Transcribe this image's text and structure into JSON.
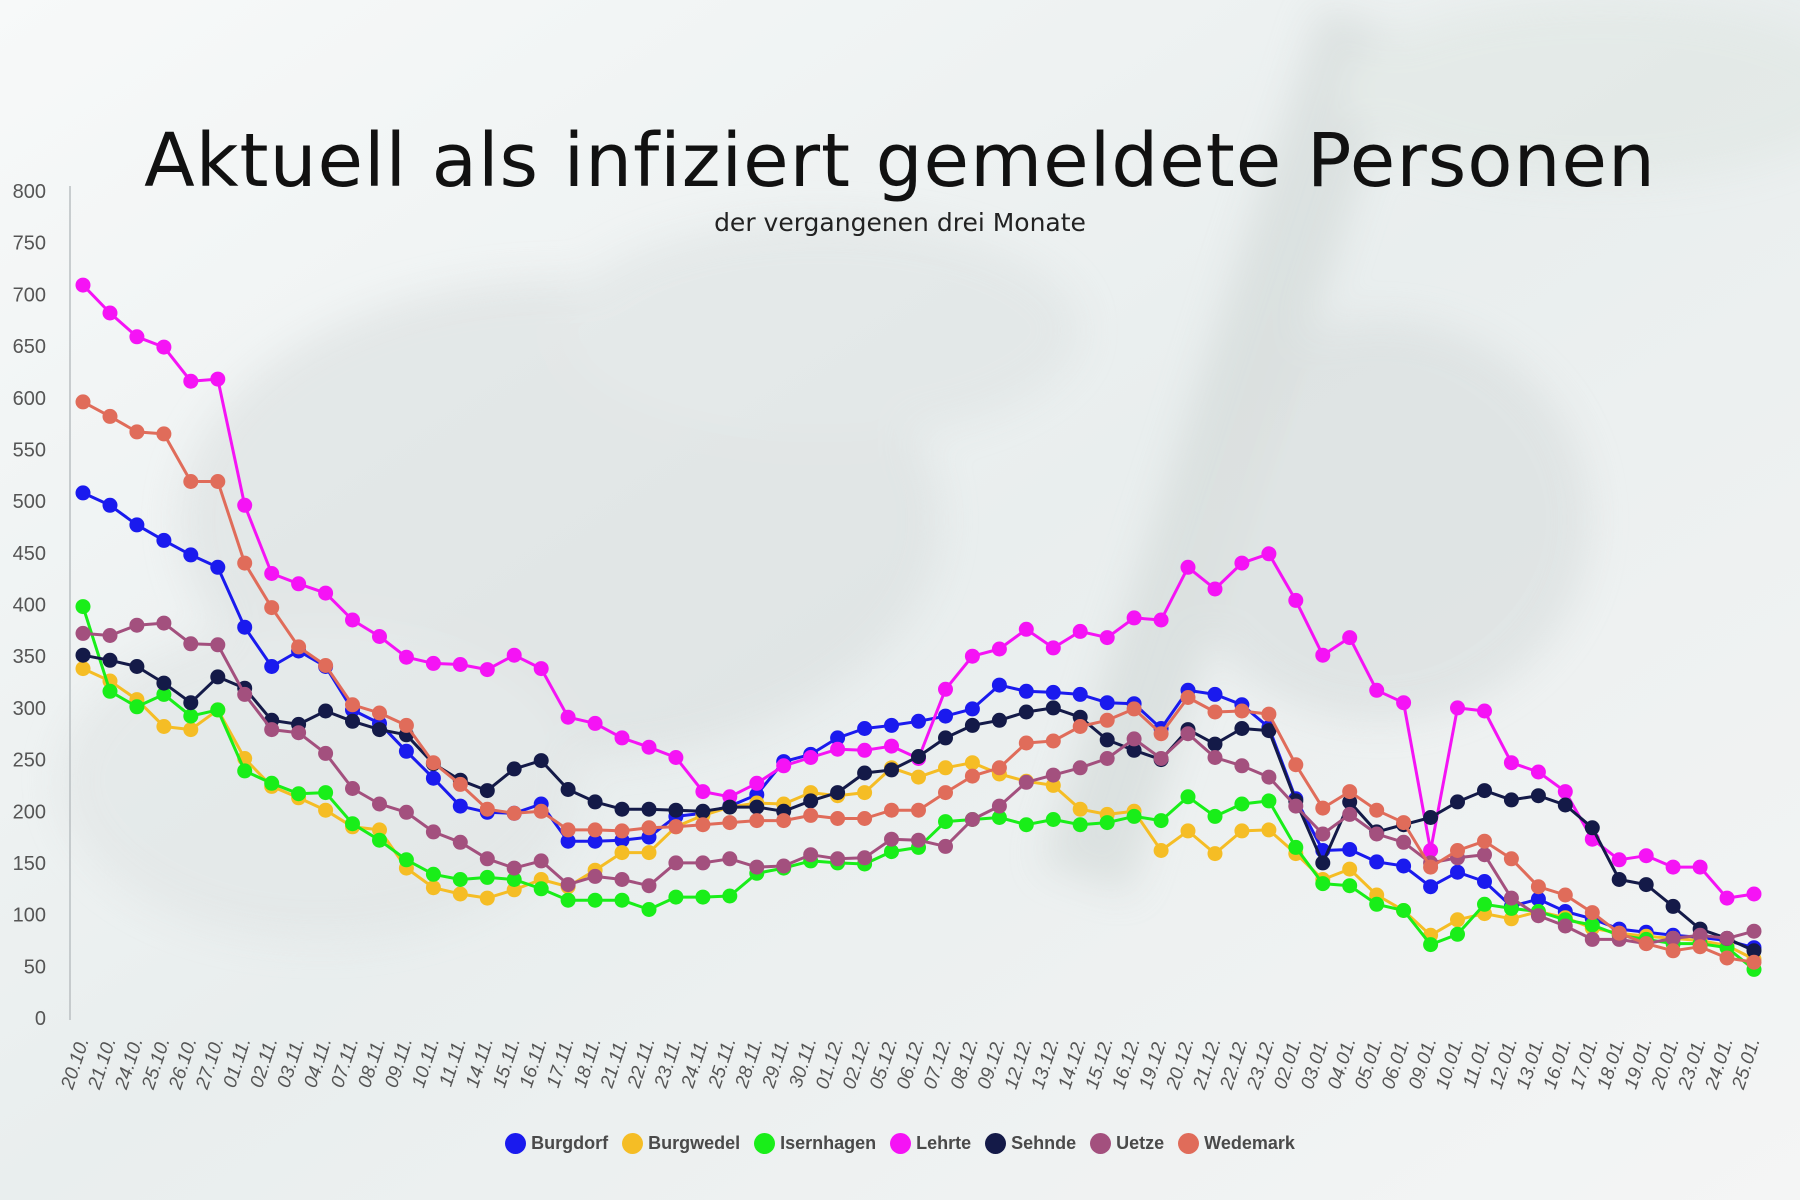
{
  "title": "Aktuell als infiziert gemeldete Personen",
  "subtitle": "der vergangenen drei Monate",
  "chart_data": {
    "type": "line",
    "title": "Aktuell als infiziert gemeldete Personen",
    "subtitle": "der vergangenen drei Monate",
    "xlabel": "",
    "ylabel": "",
    "ylim": [
      0,
      800
    ],
    "yticks": [
      0,
      50,
      100,
      150,
      200,
      250,
      300,
      350,
      400,
      450,
      500,
      550,
      600,
      650,
      700,
      750,
      800
    ],
    "grid": false,
    "legend": "bottom",
    "x": [
      "20.10.",
      "21.10.",
      "24.10.",
      "25.10.",
      "26.10.",
      "27.10.",
      "01.11.",
      "02.11.",
      "03.11.",
      "04.11.",
      "07.11.",
      "08.11.",
      "09.11.",
      "10.11.",
      "11.11.",
      "14.11.",
      "15.11.",
      "16.11.",
      "17.11.",
      "18.11.",
      "21.11.",
      "22.11.",
      "23.11.",
      "24.11.",
      "25.11.",
      "28.11.",
      "29.11.",
      "30.11.",
      "01.12.",
      "02.12.",
      "05.12.",
      "06.12.",
      "07.12.",
      "08.12.",
      "09.12.",
      "12.12.",
      "13.12.",
      "14.12.",
      "15.12.",
      "16.12.",
      "19.12.",
      "20.12.",
      "21.12.",
      "22.12.",
      "23.12.",
      "02.01.",
      "03.01.",
      "04.01.",
      "05.01.",
      "06.01.",
      "09.01.",
      "10.01.",
      "11.01.",
      "12.01.",
      "13.01.",
      "16.01.",
      "17.01.",
      "18.01.",
      "19.01.",
      "20.01.",
      "23.01.",
      "24.01.",
      "25.01."
    ],
    "series": [
      {
        "name": "Burgdorf",
        "color": "#1a1aee",
        "values": [
          508,
          496,
          477,
          462,
          448,
          436,
          378,
          340,
          355,
          340,
          298,
          285,
          258,
          232,
          205,
          199,
          198,
          207,
          171,
          171,
          172,
          175,
          195,
          198,
          205,
          216,
          248,
          255,
          271,
          280,
          283,
          287,
          292,
          299,
          322,
          316,
          315,
          313,
          305,
          304,
          280,
          317,
          313,
          303,
          281,
          212,
          162,
          163,
          151,
          147,
          127,
          141,
          132,
          108,
          115,
          103,
          96,
          86,
          83,
          80,
          78,
          75,
          68
        ]
      },
      {
        "name": "Burgwedel",
        "color": "#f5bd25",
        "values": [
          338,
          326,
          308,
          282,
          279,
          298,
          251,
          224,
          213,
          201,
          185,
          182,
          145,
          126,
          120,
          116,
          124,
          134,
          127,
          143,
          160,
          160,
          185,
          196,
          204,
          208,
          207,
          218,
          215,
          218,
          242,
          233,
          242,
          247,
          236,
          229,
          225,
          202,
          197,
          200,
          162,
          181,
          159,
          181,
          182,
          159,
          134,
          144,
          119,
          104,
          80,
          95,
          101,
          96,
          103,
          97,
          87,
          82,
          79,
          77,
          75,
          70,
          57
        ]
      },
      {
        "name": "Isernhagen",
        "color": "#19ee19",
        "values": [
          398,
          316,
          301,
          313,
          292,
          298,
          239,
          227,
          217,
          218,
          188,
          172,
          153,
          139,
          134,
          136,
          134,
          125,
          114,
          114,
          114,
          105,
          117,
          117,
          118,
          140,
          145,
          152,
          150,
          149,
          161,
          165,
          190,
          192,
          194,
          187,
          192,
          187,
          189,
          195,
          191,
          214,
          195,
          207,
          210,
          165,
          130,
          128,
          110,
          104,
          71,
          81,
          110,
          106,
          103,
          95,
          90,
          80,
          76,
          72,
          72,
          68,
          47
        ]
      },
      {
        "name": "Lehrte",
        "color": "#f513f5",
        "values": [
          709,
          682,
          659,
          649,
          616,
          618,
          496,
          430,
          420,
          411,
          385,
          369,
          349,
          343,
          342,
          337,
          351,
          338,
          291,
          285,
          271,
          262,
          252,
          219,
          214,
          227,
          244,
          252,
          260,
          259,
          263,
          251,
          318,
          350,
          357,
          376,
          358,
          374,
          368,
          387,
          385,
          436,
          415,
          440,
          449,
          404,
          351,
          368,
          317,
          305,
          162,
          300,
          297,
          247,
          238,
          219,
          173,
          153,
          157,
          146,
          146,
          116,
          120
        ]
      },
      {
        "name": "Sehnde",
        "color": "#141a48",
        "values": [
          351,
          346,
          340,
          324,
          305,
          330,
          319,
          288,
          284,
          297,
          287,
          279,
          274,
          246,
          230,
          220,
          241,
          249,
          221,
          209,
          202,
          202,
          201,
          200,
          204,
          204,
          200,
          210,
          218,
          237,
          240,
          253,
          271,
          283,
          288,
          296,
          300,
          291,
          269,
          259,
          250,
          279,
          265,
          280,
          278,
          210,
          150,
          209,
          180,
          187,
          194,
          209,
          220,
          211,
          215,
          206,
          184,
          134,
          129,
          108,
          86,
          77,
          65
        ]
      },
      {
        "name": "Uetze",
        "color": "#a3507e",
        "values": [
          372,
          370,
          380,
          382,
          362,
          361,
          313,
          279,
          276,
          256,
          222,
          207,
          199,
          180,
          170,
          154,
          145,
          152,
          129,
          137,
          134,
          128,
          150,
          150,
          154,
          146,
          147,
          158,
          154,
          155,
          173,
          172,
          166,
          192,
          205,
          228,
          235,
          242,
          251,
          270,
          251,
          275,
          252,
          244,
          233,
          205,
          178,
          197,
          178,
          170,
          150,
          155,
          158,
          116,
          99,
          89,
          76,
          76,
          72,
          77,
          80,
          77,
          84
        ]
      },
      {
        "name": "Wedemark",
        "color": "#e06c5a",
        "values": [
          596,
          582,
          567,
          565,
          519,
          519,
          440,
          397,
          359,
          341,
          303,
          295,
          283,
          247,
          226,
          202,
          198,
          200,
          182,
          182,
          181,
          184,
          185,
          187,
          189,
          191,
          191,
          196,
          193,
          193,
          201,
          201,
          218,
          234,
          242,
          266,
          268,
          282,
          288,
          299,
          275,
          310,
          296,
          297,
          294,
          245,
          203,
          219,
          201,
          189,
          146,
          162,
          171,
          154,
          127,
          119,
          102,
          82,
          72,
          65,
          69,
          58,
          54
        ]
      }
    ]
  }
}
